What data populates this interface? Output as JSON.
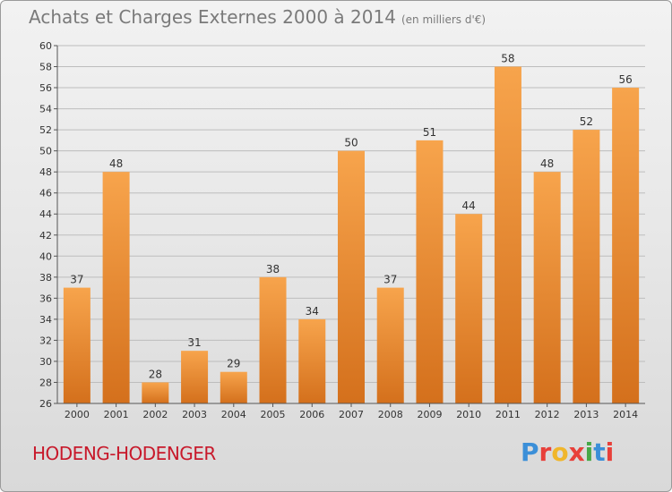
{
  "header": {
    "title": "Achats et Charges Externes 2000 à 2014",
    "unit": "(en milliers d'€)"
  },
  "footer": {
    "city": "HODENG-HODENGER",
    "logo_letters": [
      "P",
      "r",
      "o",
      "x",
      "i",
      "t",
      "i"
    ],
    "logo_colors": [
      "#3b8fd8",
      "#e8403a",
      "#f0b62b",
      "#e8403a",
      "#46a847",
      "#3b8fd8",
      "#e8403a"
    ]
  },
  "colors": {
    "bar_top": "#f7a44c",
    "bar_bottom": "#d4701c",
    "grid": "#bdbdbd",
    "axis": "#555555"
  },
  "chart_data": {
    "type": "bar",
    "title": "Achats et Charges Externes 2000 à 2014",
    "subtitle": "(en milliers d'€)",
    "xlabel": "",
    "ylabel": "",
    "categories": [
      "2000",
      "2001",
      "2002",
      "2003",
      "2004",
      "2005",
      "2006",
      "2007",
      "2008",
      "2009",
      "2010",
      "2011",
      "2012",
      "2013",
      "2014"
    ],
    "values": [
      37,
      48,
      28,
      31,
      29,
      38,
      34,
      50,
      37,
      51,
      44,
      58,
      48,
      52,
      56
    ],
    "ylim": [
      26,
      60
    ],
    "yticks": [
      26,
      28,
      30,
      32,
      34,
      36,
      38,
      40,
      42,
      44,
      46,
      48,
      50,
      52,
      54,
      56,
      58,
      60
    ],
    "grid": true,
    "legend": "none"
  }
}
